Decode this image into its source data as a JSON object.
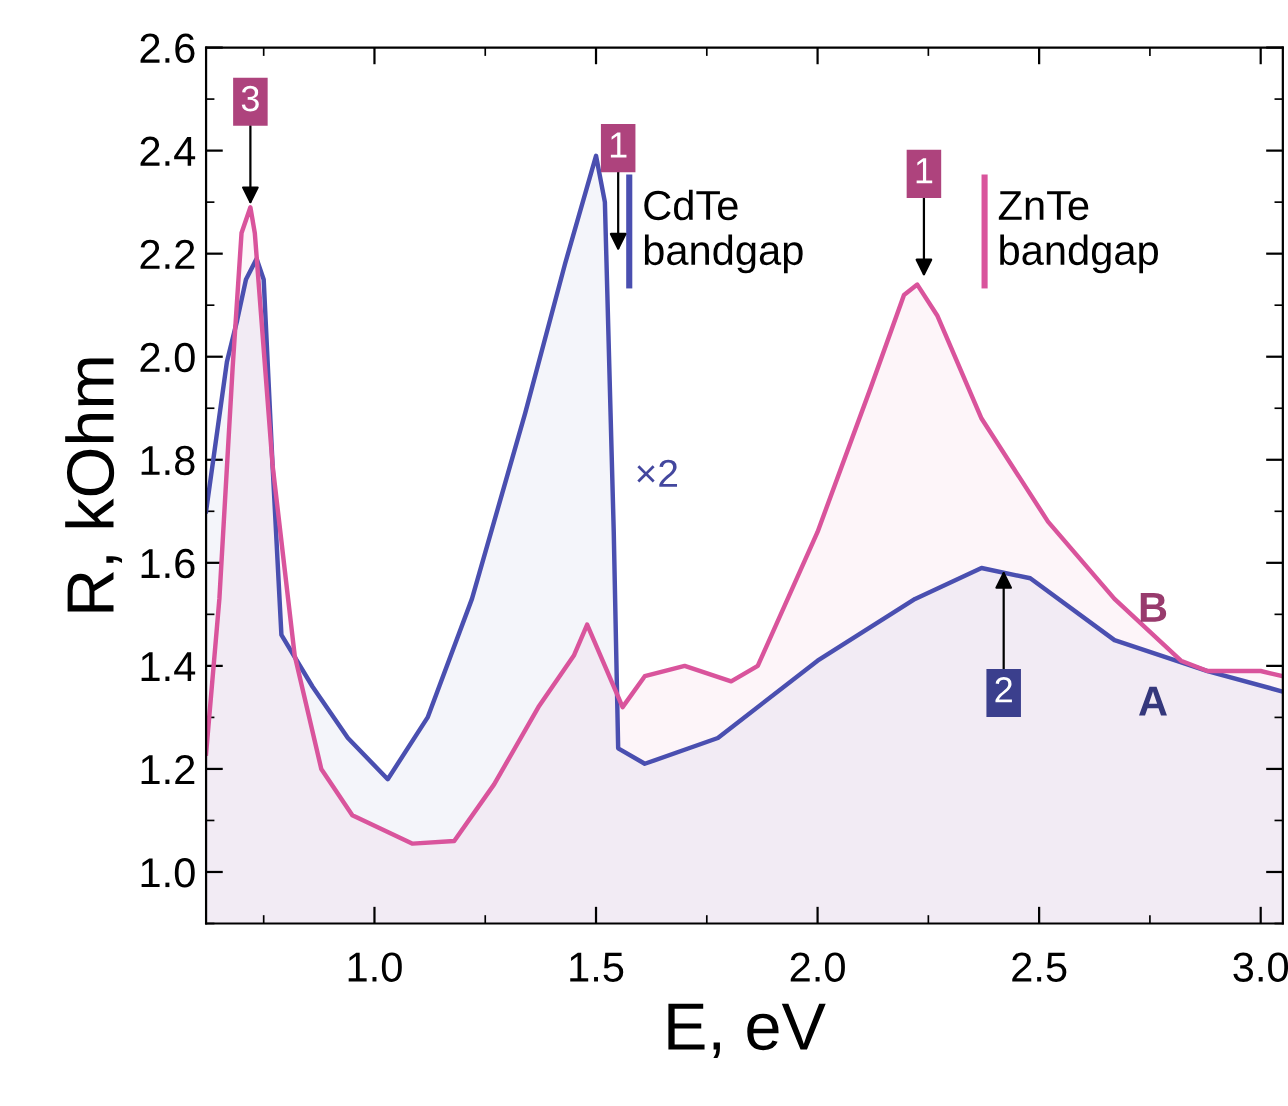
{
  "chart_data": {
    "type": "area",
    "xlabel": "E, eV",
    "ylabel": "R, kOhm",
    "xlim": [
      0.62,
      3.05
    ],
    "ylim": [
      0.9,
      2.6
    ],
    "xticks": [
      {
        "value": 1,
        "label": "1.0"
      },
      1.5,
      {
        "value": 2,
        "label": "2.0"
      },
      2.5,
      {
        "value": 3,
        "label": "3.0"
      }
    ],
    "yticks": [
      {
        "value": 1,
        "label": "1.0"
      },
      1.2,
      1.4,
      1.6,
      1.8,
      {
        "value": 2,
        "label": "2.0"
      },
      2.2,
      2.4,
      2.6
    ],
    "series": [
      {
        "name": "A",
        "color": "#4a4fb0",
        "x": [
          0.62,
          0.667,
          0.69,
          0.71,
          0.734,
          0.75,
          0.77,
          0.79,
          0.86,
          0.94,
          1.03,
          1.12,
          1.22,
          1.34,
          1.43,
          1.5,
          1.52,
          1.54,
          1.55,
          1.61,
          1.775,
          2.0,
          2.22,
          2.37,
          2.48,
          2.67,
          2.88,
          3.05
        ],
        "values": [
          1.7,
          1.99,
          2.07,
          2.15,
          2.19,
          2.15,
          1.79,
          1.46,
          1.36,
          1.26,
          1.18,
          1.3,
          1.53,
          1.89,
          2.18,
          2.39,
          2.3,
          1.66,
          1.24,
          1.21,
          1.26,
          1.41,
          1.53,
          1.59,
          1.57,
          1.45,
          1.39,
          1.35
        ]
      },
      {
        "name": "B",
        "color": "#d9549c",
        "x": [
          0.62,
          0.65,
          0.68,
          0.7,
          0.72,
          0.73,
          0.77,
          0.82,
          0.88,
          0.95,
          1.086,
          1.18,
          1.27,
          1.37,
          1.45,
          1.48,
          1.52,
          1.56,
          1.61,
          1.7,
          1.805,
          1.865,
          2.0,
          2.12,
          2.195,
          2.225,
          2.27,
          2.37,
          2.52,
          2.67,
          2.82,
          2.88,
          3.0,
          3.05
        ],
        "values": [
          1.23,
          1.53,
          1.98,
          2.24,
          2.29,
          2.24,
          1.79,
          1.42,
          1.2,
          1.11,
          1.055,
          1.06,
          1.17,
          1.32,
          1.42,
          1.48,
          1.4,
          1.32,
          1.38,
          1.4,
          1.37,
          1.4,
          1.66,
          1.94,
          2.12,
          2.14,
          2.08,
          1.88,
          1.68,
          1.53,
          1.41,
          1.39,
          1.39,
          1.38
        ]
      }
    ],
    "annotations": [
      {
        "text": "3",
        "x": 0.72,
        "y": 2.29
      },
      {
        "text": "1",
        "x": 1.55,
        "y": 2.2
      },
      {
        "text": "1",
        "x": 2.24,
        "y": 2.15
      },
      {
        "text": "2",
        "x": 2.42,
        "y": 1.59
      },
      "CdTe\nbandgap",
      "ZnTe\nbandgap",
      "×2"
    ],
    "grid": false,
    "legend": false
  }
}
